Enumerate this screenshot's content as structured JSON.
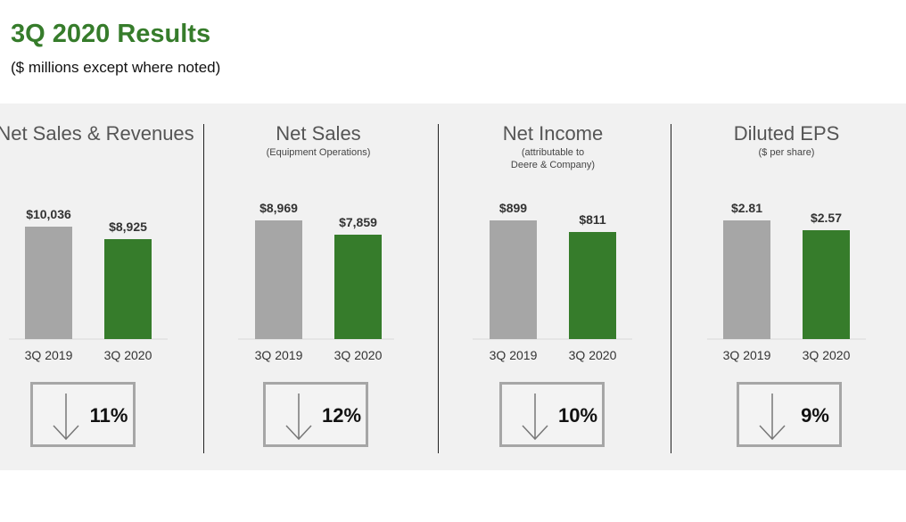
{
  "header": {
    "title": "3Q 2020 Results",
    "subtitle": "($ millions except where noted)"
  },
  "colors": {
    "title": "#367c2b",
    "bar_2019": "#a6a6a6",
    "bar_2020": "#367c2b",
    "panel_bg": "#f1f1f1"
  },
  "chart_data": [
    {
      "type": "bar",
      "title": "Net Sales & Revenues",
      "subtitle": "",
      "categories": [
        "3Q 2019",
        "3Q 2020"
      ],
      "values": [
        10036,
        8925
      ],
      "value_labels": [
        "$10,036",
        "$8,925"
      ],
      "ylim": [
        0,
        10600
      ],
      "change": "11%",
      "change_icon": "arrow-down-icon"
    },
    {
      "type": "bar",
      "title": "Net Sales",
      "subtitle": "(Equipment Operations)",
      "categories": [
        "3Q 2019",
        "3Q 2020"
      ],
      "values": [
        8969,
        7859
      ],
      "value_labels": [
        "$8,969",
        "$7,859"
      ],
      "ylim": [
        0,
        8969
      ],
      "change": "12%",
      "change_icon": "arrow-down-icon"
    },
    {
      "type": "bar",
      "title": "Net Income",
      "subtitle": "(attributable to\nDeere & Company)",
      "categories": [
        "3Q 2019",
        "3Q 2020"
      ],
      "values": [
        899,
        811
      ],
      "value_labels": [
        "$899",
        "$811"
      ],
      "ylim": [
        0,
        899
      ],
      "change": "10%",
      "change_icon": "arrow-down-icon"
    },
    {
      "type": "bar",
      "title": "Diluted EPS",
      "subtitle": "($ per share)",
      "categories": [
        "3Q 2019",
        "3Q 2020"
      ],
      "values": [
        2.81,
        2.57
      ],
      "value_labels": [
        "$2.81",
        "$2.57"
      ],
      "ylim": [
        0,
        2.81
      ],
      "change": "9%",
      "change_icon": "arrow-down-icon"
    }
  ]
}
